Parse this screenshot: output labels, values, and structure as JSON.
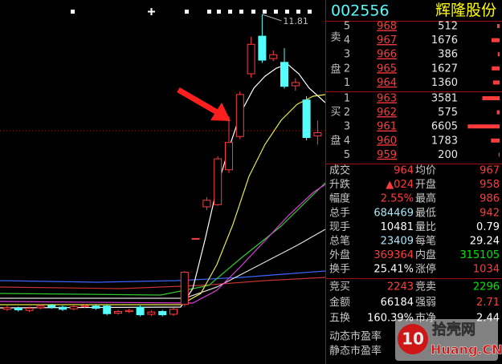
{
  "header": {
    "code": "002556",
    "name": "辉隆股份"
  },
  "chart": {
    "type": "candlestick",
    "ylim": [
      5.5,
      12
    ],
    "high_label": 11.81,
    "up_color": "#ff3c3c",
    "down_color": "#54fcfc",
    "open": [
      6.4,
      6.42,
      6.38,
      6.43,
      6.47,
      6.44,
      6.41,
      6.45,
      6.46,
      6.46,
      6.33,
      6.36,
      6.44,
      6.31,
      6.36,
      6.31,
      6.49,
      7.69,
      8.28,
      8.32,
      8.96,
      9.57,
      10.72,
      11.41,
      11.0,
      10.93,
      10.5,
      10.24,
      9.58
    ],
    "high": [
      6.47,
      6.45,
      6.45,
      6.49,
      6.5,
      6.47,
      6.48,
      6.5,
      6.49,
      6.49,
      6.39,
      6.41,
      6.47,
      6.38,
      6.39,
      6.43,
      7.1,
      7.7,
      8.46,
      9.21,
      9.94,
      10.4,
      11.4,
      11.81,
      11.15,
      11.19,
      10.64,
      10.31,
      9.86
    ],
    "low": [
      6.37,
      6.36,
      6.35,
      6.4,
      6.41,
      6.37,
      6.38,
      6.42,
      6.39,
      6.29,
      6.3,
      6.33,
      6.27,
      6.28,
      6.27,
      6.28,
      6.45,
      7.69,
      8.22,
      8.3,
      8.9,
      9.52,
      10.65,
      10.92,
      10.95,
      10.45,
      10.41,
      9.5,
      9.42
    ],
    "close": [
      6.43,
      6.39,
      6.42,
      6.46,
      6.44,
      6.4,
      6.45,
      6.47,
      6.42,
      6.32,
      6.36,
      6.38,
      6.3,
      6.35,
      6.3,
      6.4,
      7.08,
      7.7,
      8.4,
      9.16,
      9.46,
      10.34,
      11.26,
      10.97,
      11.07,
      10.49,
      10.56,
      9.55,
      9.64
    ]
  },
  "order_book": {
    "sell_label": [
      "卖",
      "盘"
    ],
    "buy_label": [
      "买",
      "盘"
    ],
    "bar_color": "#ff3c3c",
    "sell": [
      {
        "level": 5,
        "price": 968,
        "volume": 512
      },
      {
        "level": 4,
        "price": 967,
        "volume": 1676
      },
      {
        "level": 3,
        "price": 966,
        "volume": 386
      },
      {
        "level": 2,
        "price": 965,
        "volume": 1627
      },
      {
        "level": 1,
        "price": 964,
        "volume": 1360
      }
    ],
    "buy": [
      {
        "level": 1,
        "price": 963,
        "volume": 3581
      },
      {
        "level": 2,
        "price": 962,
        "volume": 575
      },
      {
        "level": 3,
        "price": 961,
        "volume": 6605
      },
      {
        "level": 4,
        "price": 960,
        "volume": 1783
      },
      {
        "level": 5,
        "price": 959,
        "volume": 200
      }
    ]
  },
  "stats": [
    {
      "label": "成交",
      "value": "964",
      "color": "#ff3c3c",
      "label2": "均价",
      "value2": "967",
      "color2": "#ff3c3c"
    },
    {
      "label": "升跌",
      "value": "▲024",
      "color": "#ff3c3c",
      "label2": "开盘",
      "value2": "958",
      "color2": "#ff3c3c"
    },
    {
      "label": "幅度",
      "value": "2.55%",
      "color": "#ff3c3c",
      "label2": "最高",
      "value2": "986",
      "color2": "#ff3c3c"
    },
    {
      "label": "总手",
      "value": "684469",
      "color": "#a8e8f8",
      "label2": "最低",
      "value2": "942",
      "color2": "#ff3c3c"
    },
    {
      "label": "现手",
      "value": "10481",
      "color": "#ffffff",
      "label2": "量比",
      "value2": "0.79",
      "color2": "#ffffff"
    },
    {
      "label": "总笔",
      "value": "23409",
      "color": "#a8e8f8",
      "label2": "每笔",
      "value2": "29.24",
      "color2": "#ffffff"
    },
    {
      "label": "外盘",
      "value": "369364",
      "color": "#ff3c3c",
      "label2": "内盘",
      "value2": "315105",
      "color2": "#00e600"
    },
    {
      "label": "换手",
      "value": "25.41%",
      "color": "#ffffff",
      "label2": "涨停",
      "value2": "1034",
      "color2": "#ff3c3c"
    },
    {
      "label": "竞买",
      "value": "2243",
      "color": "#ff3c3c",
      "label2": "竞卖",
      "value2": "2296",
      "color2": "#00e600"
    },
    {
      "label": "金额",
      "value": "66184",
      "color": "#ffffff",
      "label2": "强弱",
      "value2": "2.71",
      "color2": "#ff3c3c"
    },
    {
      "label": "五换",
      "value": "160.39%",
      "color": "#ffffff",
      "label2": "市净",
      "value2": "2.44",
      "color2": "#ffffff"
    }
  ],
  "bottom": [
    "动态市盈率",
    "静态市盈率"
  ],
  "watermark": {
    "logo": "10",
    "name": "拾壳网",
    "site": "Huang.CN"
  }
}
